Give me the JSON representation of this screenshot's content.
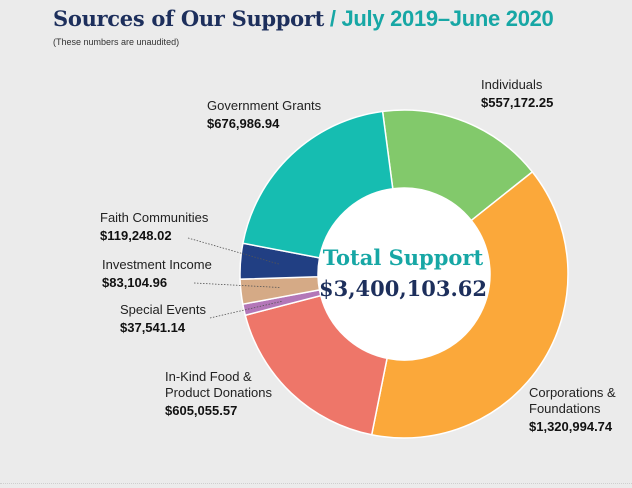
{
  "header": {
    "title_main": "Sources of Our Support",
    "title_sep": " / ",
    "title_period": "July 2019–June 2020",
    "note": "(These numbers are unaudited)"
  },
  "chart_data": {
    "type": "pie",
    "donut": true,
    "center_title": "Total Support",
    "center_value": "$3,400,103.62",
    "total": 3400103.62,
    "slices": [
      {
        "name": "Individuals",
        "value": 557172.25,
        "value_label": "$557,172.25",
        "color": "#82c96b"
      },
      {
        "name": "Corporations & Foundations",
        "name_lines": [
          "Corporations &",
          "Foundations"
        ],
        "value": 1320994.74,
        "value_label": "$1,320,994.74",
        "color": "#fba83a"
      },
      {
        "name": "In-Kind Food & Product Donations",
        "name_lines": [
          "In-Kind Food &",
          "Product Donations"
        ],
        "value": 605055.57,
        "value_label": "$605,055.57",
        "color": "#ee7669"
      },
      {
        "name": "Special Events",
        "value": 37541.14,
        "value_label": "$37,541.14",
        "color": "#b377b8"
      },
      {
        "name": "Investment Income",
        "value": 83104.96,
        "value_label": "$83,104.96",
        "color": "#d5aa86"
      },
      {
        "name": "Faith Communities",
        "value": 119248.02,
        "value_label": "$119,248.02",
        "color": "#213f83"
      },
      {
        "name": "Government Grants",
        "value": 676986.94,
        "value_label": "$676,986.94",
        "color": "#16bdb1"
      }
    ]
  }
}
